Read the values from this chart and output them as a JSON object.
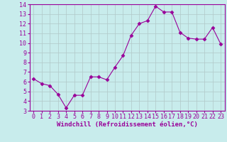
{
  "x": [
    0,
    1,
    2,
    3,
    4,
    5,
    6,
    7,
    8,
    9,
    10,
    11,
    12,
    13,
    14,
    15,
    16,
    17,
    18,
    19,
    20,
    21,
    22,
    23
  ],
  "y": [
    6.3,
    5.8,
    5.6,
    4.7,
    3.3,
    4.6,
    4.6,
    6.5,
    6.5,
    6.2,
    7.5,
    8.7,
    10.8,
    12.0,
    12.3,
    13.8,
    13.2,
    13.2,
    11.1,
    10.5,
    10.4,
    10.4,
    11.6,
    9.9
  ],
  "line_color": "#990099",
  "marker": "D",
  "marker_size": 2.5,
  "bg_color": "#c8ecec",
  "grid_color": "#b0c8c8",
  "xlabel": "Windchill (Refroidissement éolien,°C)",
  "xlim": [
    -0.5,
    23.5
  ],
  "ylim": [
    3,
    14
  ],
  "yticks": [
    3,
    4,
    5,
    6,
    7,
    8,
    9,
    10,
    11,
    12,
    13,
    14
  ],
  "xticks": [
    0,
    1,
    2,
    3,
    4,
    5,
    6,
    7,
    8,
    9,
    10,
    11,
    12,
    13,
    14,
    15,
    16,
    17,
    18,
    19,
    20,
    21,
    22,
    23
  ],
  "tick_color": "#990099",
  "xlabel_color": "#990099",
  "label_fontsize": 6.5,
  "tick_fontsize": 6.0,
  "spine_color": "#990099",
  "linewidth": 0.8
}
